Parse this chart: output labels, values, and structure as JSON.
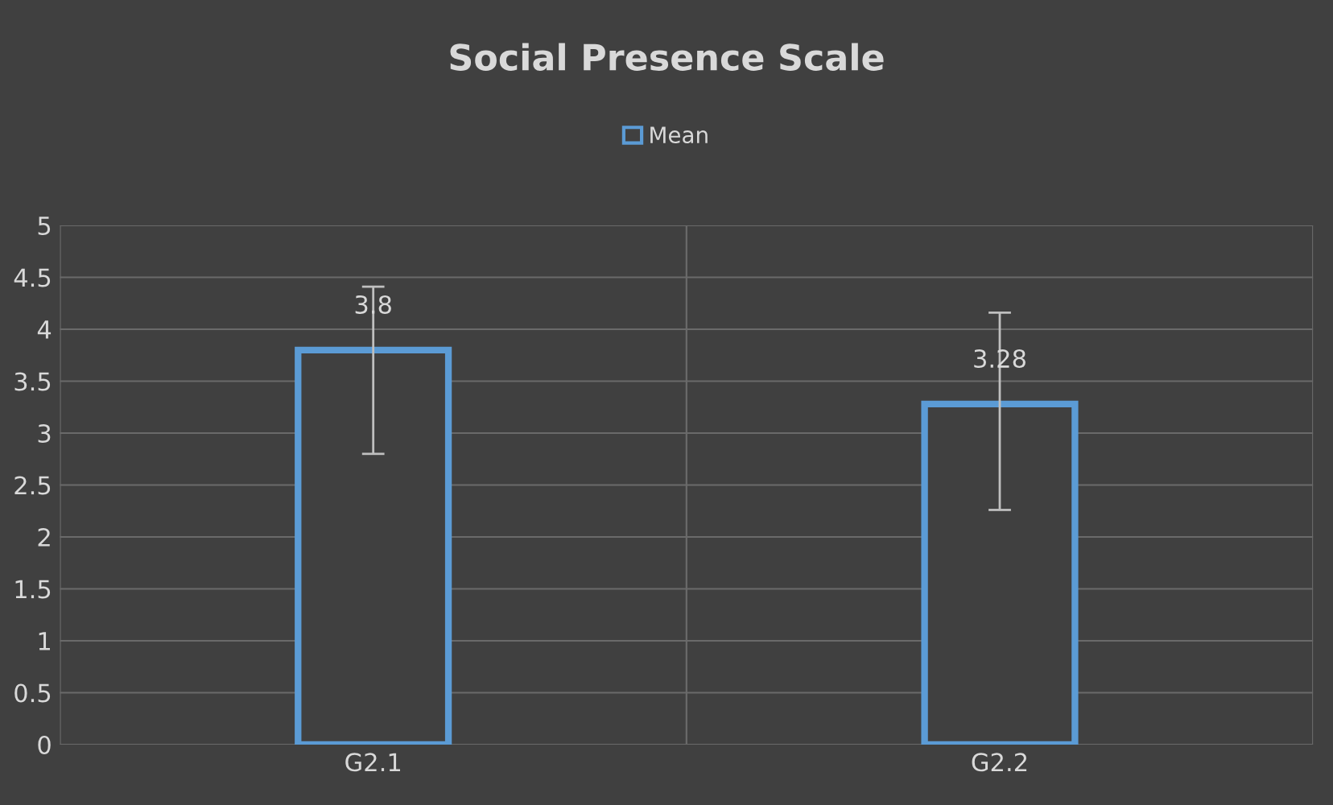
{
  "chart_data": {
    "type": "bar",
    "title": "Social Presence Scale",
    "categories": [
      "G2.1",
      "G2.2"
    ],
    "series": [
      {
        "name": "Mean",
        "color": "#5b9bd5",
        "values": [
          3.8,
          3.28
        ],
        "errors": [
          [
            2.8,
            4.41
          ],
          [
            2.26,
            4.16
          ]
        ]
      }
    ],
    "ylim": [
      0,
      5
    ],
    "yticks": [
      0,
      0.5,
      1,
      1.5,
      2,
      2.5,
      3,
      3.5,
      4,
      4.5,
      5
    ],
    "grid": true,
    "legend": "top",
    "data_labels": true
  }
}
